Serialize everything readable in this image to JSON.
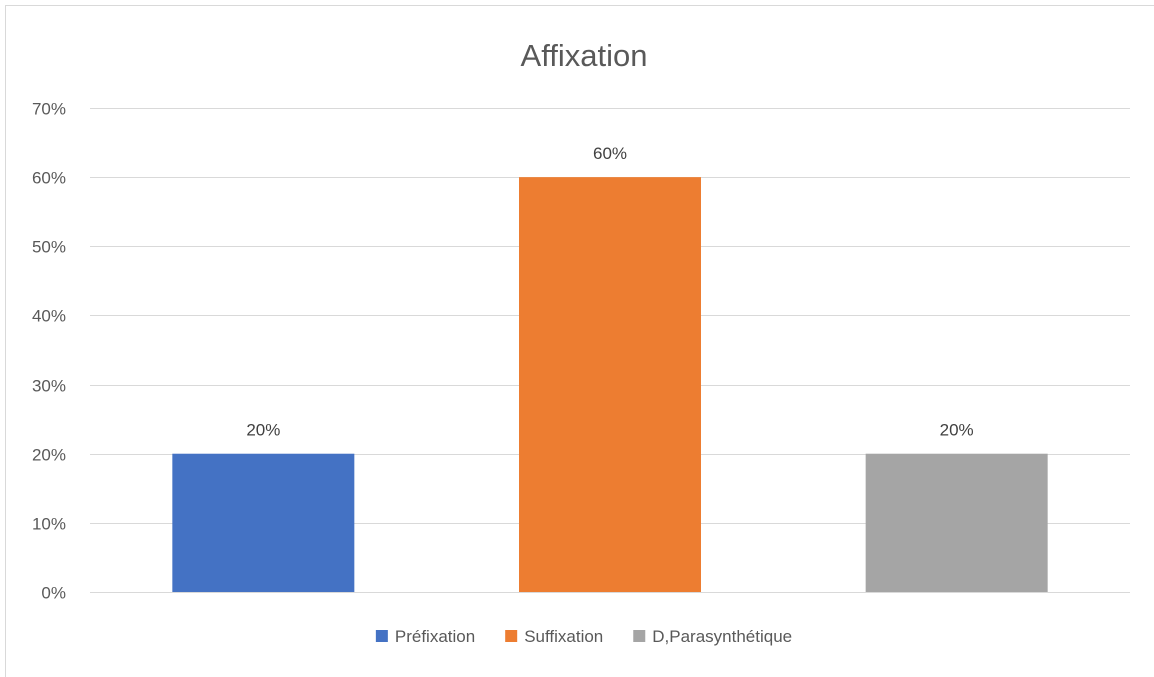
{
  "chart_data": {
    "type": "bar",
    "title": "Affixation",
    "xlabel": "",
    "ylabel": "",
    "ylim": [
      0,
      70
    ],
    "y_ticks": [
      0,
      10,
      20,
      30,
      40,
      50,
      60,
      70
    ],
    "y_tick_labels": [
      "0%",
      "10%",
      "20%",
      "30%",
      "40%",
      "50%",
      "60%",
      "70%"
    ],
    "grid": true,
    "legend_position": "bottom",
    "categories": [
      "Préfixation",
      "Suffixation",
      "D,Parasynthétique"
    ],
    "values": [
      20,
      60,
      20
    ],
    "data_labels": [
      "20%",
      "60%",
      "20%"
    ],
    "colors": [
      "#4472C4",
      "#ED7D31",
      "#A5A5A5"
    ]
  }
}
